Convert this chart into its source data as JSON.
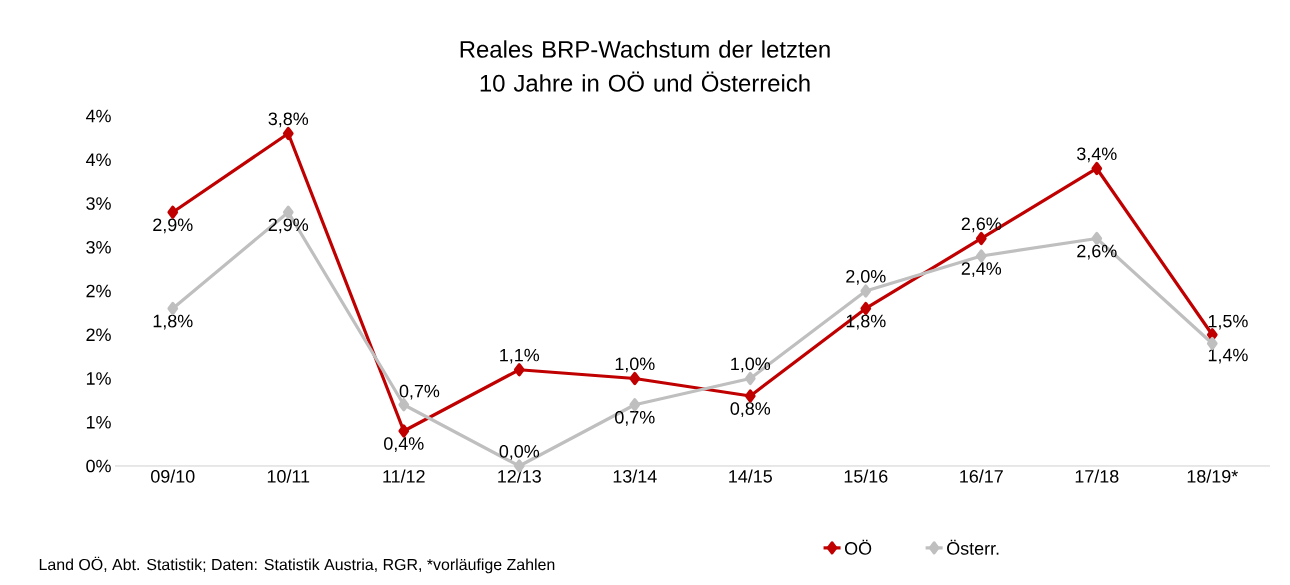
{
  "chart_data": {
    "type": "line",
    "title": "Reales BRP-Wachstum der letzten 10 Jahre in OÖ und Österreich",
    "categories": [
      "09/10",
      "10/11",
      "11/12",
      "12/13",
      "13/14",
      "14/15",
      "15/16",
      "16/17",
      "17/18",
      "18/19*"
    ],
    "series": [
      {
        "name": "OÖ",
        "color": "#c00000",
        "values": [
          2.9,
          3.8,
          0.4,
          1.1,
          1.0,
          0.8,
          1.8,
          2.6,
          3.4,
          1.5
        ],
        "value_labels": [
          "2,9%",
          "3,8%",
          "0,4%",
          "1,1%",
          "1,0%",
          "0,8%",
          "1,8%",
          "2,6%",
          "3,4%",
          "1,5%"
        ]
      },
      {
        "name": "Österr.",
        "color": "#bfbfbf",
        "values": [
          1.8,
          2.9,
          0.7,
          0.0,
          0.7,
          1.0,
          2.0,
          2.4,
          2.6,
          1.4
        ],
        "value_labels": [
          "1,8%",
          "2,9%",
          "0,7%",
          "0,0%",
          "0,7%",
          "1,0%",
          "2,0%",
          "2,4%",
          "2,6%",
          "1,4%"
        ]
      }
    ],
    "ylim": [
      0,
      4
    ],
    "yticks": [
      {
        "value": 0,
        "label": "0%"
      },
      {
        "value": 0.5,
        "label": "1%"
      },
      {
        "value": 1,
        "label": "1%"
      },
      {
        "value": 1.5,
        "label": "2%"
      },
      {
        "value": 2,
        "label": "2%"
      },
      {
        "value": 2.5,
        "label": "3%"
      },
      {
        "value": 3,
        "label": "3%"
      },
      {
        "value": 3.5,
        "label": "4%"
      },
      {
        "value": 4,
        "label": "4%"
      }
    ],
    "grid": false,
    "legend": "bottom",
    "marker": "diamond",
    "line_style": "solid",
    "annotations": [
      "Land OÖ, Abt. Statistik; Daten: Statistik Austria, RGR, *vorläufige Zahlen"
    ]
  }
}
